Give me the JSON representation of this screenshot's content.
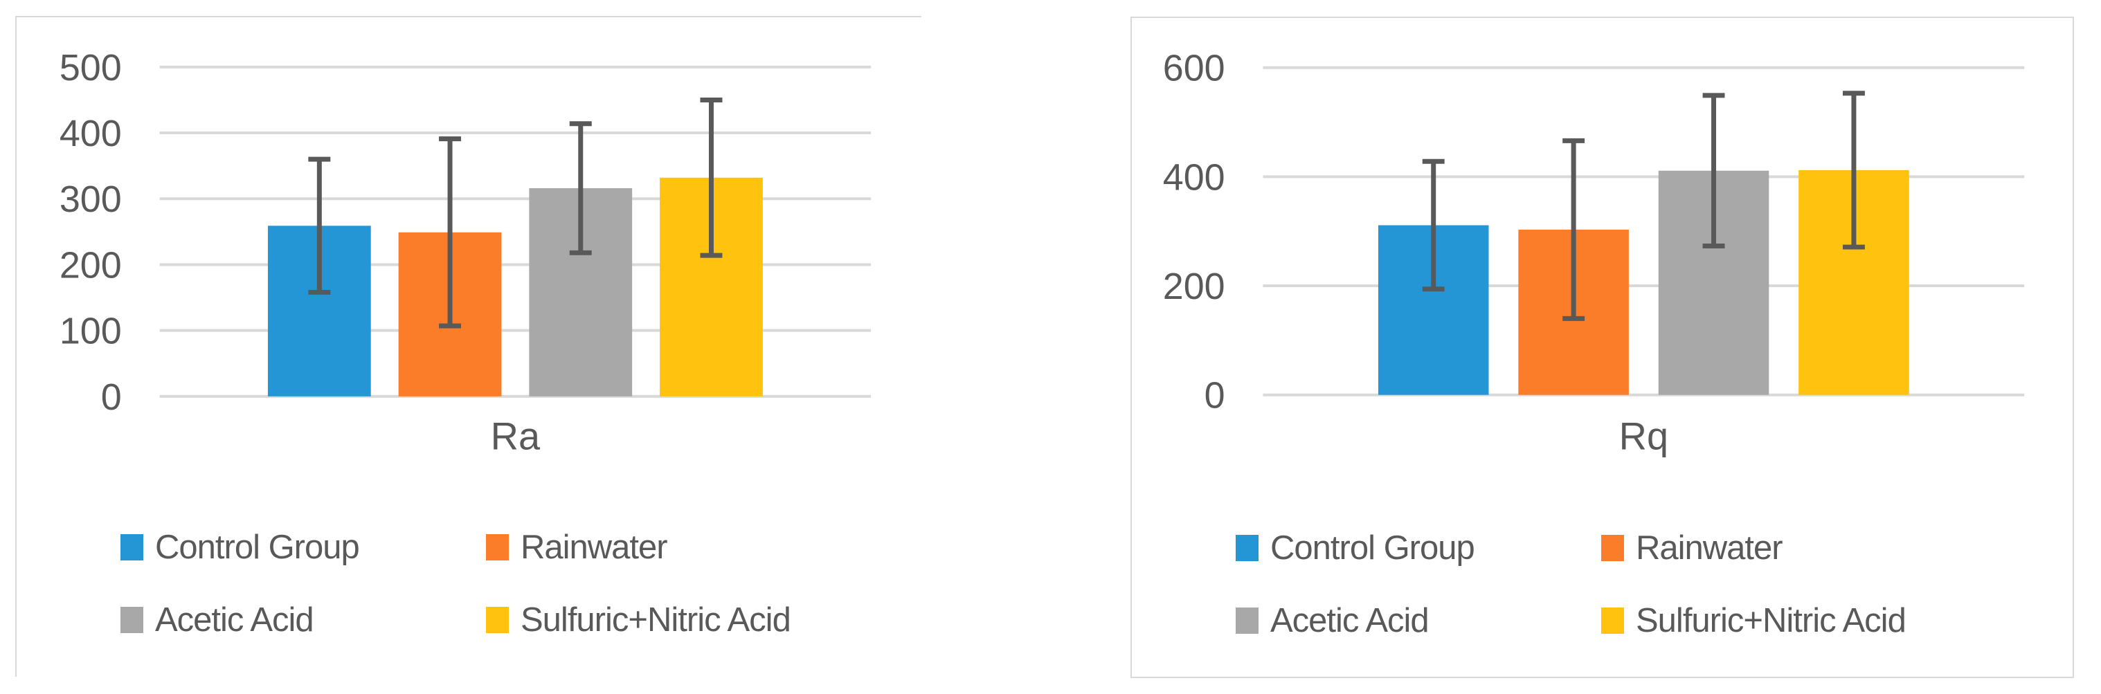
{
  "page": {
    "background": "#ffffff"
  },
  "colors": {
    "grid": "#d9d9d9",
    "panel_border": "#d9d9d9",
    "text": "#595959",
    "error_bar": "#595959"
  },
  "chart_data": [
    {
      "type": "bar",
      "title": "",
      "categories": [
        "Ra"
      ],
      "xlabel": "Ra",
      "ylabel": "",
      "ylim": [
        0,
        500
      ],
      "yticks": [
        0,
        100,
        200,
        300,
        400,
        500
      ],
      "grid": true,
      "legend_position": "bottom",
      "error_bars": true,
      "series": [
        {
          "name": "Control Group",
          "color": "#2496d6",
          "values": [
            259
          ],
          "error": [
            101
          ]
        },
        {
          "name": "Rainwater",
          "color": "#fb7d29",
          "values": [
            249
          ],
          "error": [
            142
          ]
        },
        {
          "name": "Acetic Acid",
          "color": "#a8a8a8",
          "values": [
            316
          ],
          "error": [
            98
          ]
        },
        {
          "name": "Sulfuric+Nitric Acid",
          "color": "#ffc20e",
          "values": [
            332
          ],
          "error": [
            118
          ]
        }
      ]
    },
    {
      "type": "bar",
      "title": "",
      "categories": [
        "Rq"
      ],
      "xlabel": "Rq",
      "ylabel": "",
      "ylim": [
        0,
        600
      ],
      "yticks": [
        0,
        200,
        400,
        600
      ],
      "grid": true,
      "legend_position": "bottom",
      "error_bars": true,
      "series": [
        {
          "name": "Control Group",
          "color": "#2496d6",
          "values": [
            311
          ],
          "error": [
            117
          ]
        },
        {
          "name": "Rainwater",
          "color": "#fb7d29",
          "values": [
            303
          ],
          "error": [
            163
          ]
        },
        {
          "name": "Acetic Acid",
          "color": "#a8a8a8",
          "values": [
            411
          ],
          "error": [
            138
          ]
        },
        {
          "name": "Sulfuric+Nitric Acid",
          "color": "#ffc20e",
          "values": [
            412
          ],
          "error": [
            141
          ]
        }
      ]
    }
  ]
}
